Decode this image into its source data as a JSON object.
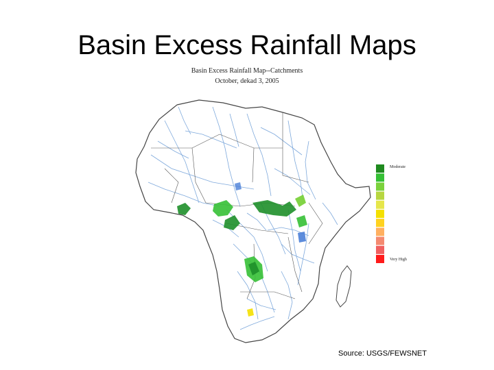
{
  "slide": {
    "title": "Basin Excess Rainfall Maps"
  },
  "map": {
    "title": "Basin Excess Rainfall Map--Catchments",
    "subtitle": "October, dekad 3, 2005",
    "legend": {
      "top_label": "Moderate",
      "bottom_label": "Very High",
      "colors": [
        "#1f8a1f",
        "#35c035",
        "#7bd23c",
        "#b7d640",
        "#e6e64a",
        "#f4e000",
        "#ffd21f",
        "#ffb060",
        "#f48a70",
        "#f06060",
        "#ff1a1a"
      ]
    },
    "colors": {
      "rivers": "#6f9fd8",
      "borders": "#444444",
      "land": "#ffffff",
      "excess_green_dark": "#1e8f2a",
      "excess_green_light": "#7bd23c",
      "excess_blue": "#4a7fd8",
      "excess_yellow": "#f4e000"
    }
  },
  "source": "Source: USGS/FEWSNET"
}
